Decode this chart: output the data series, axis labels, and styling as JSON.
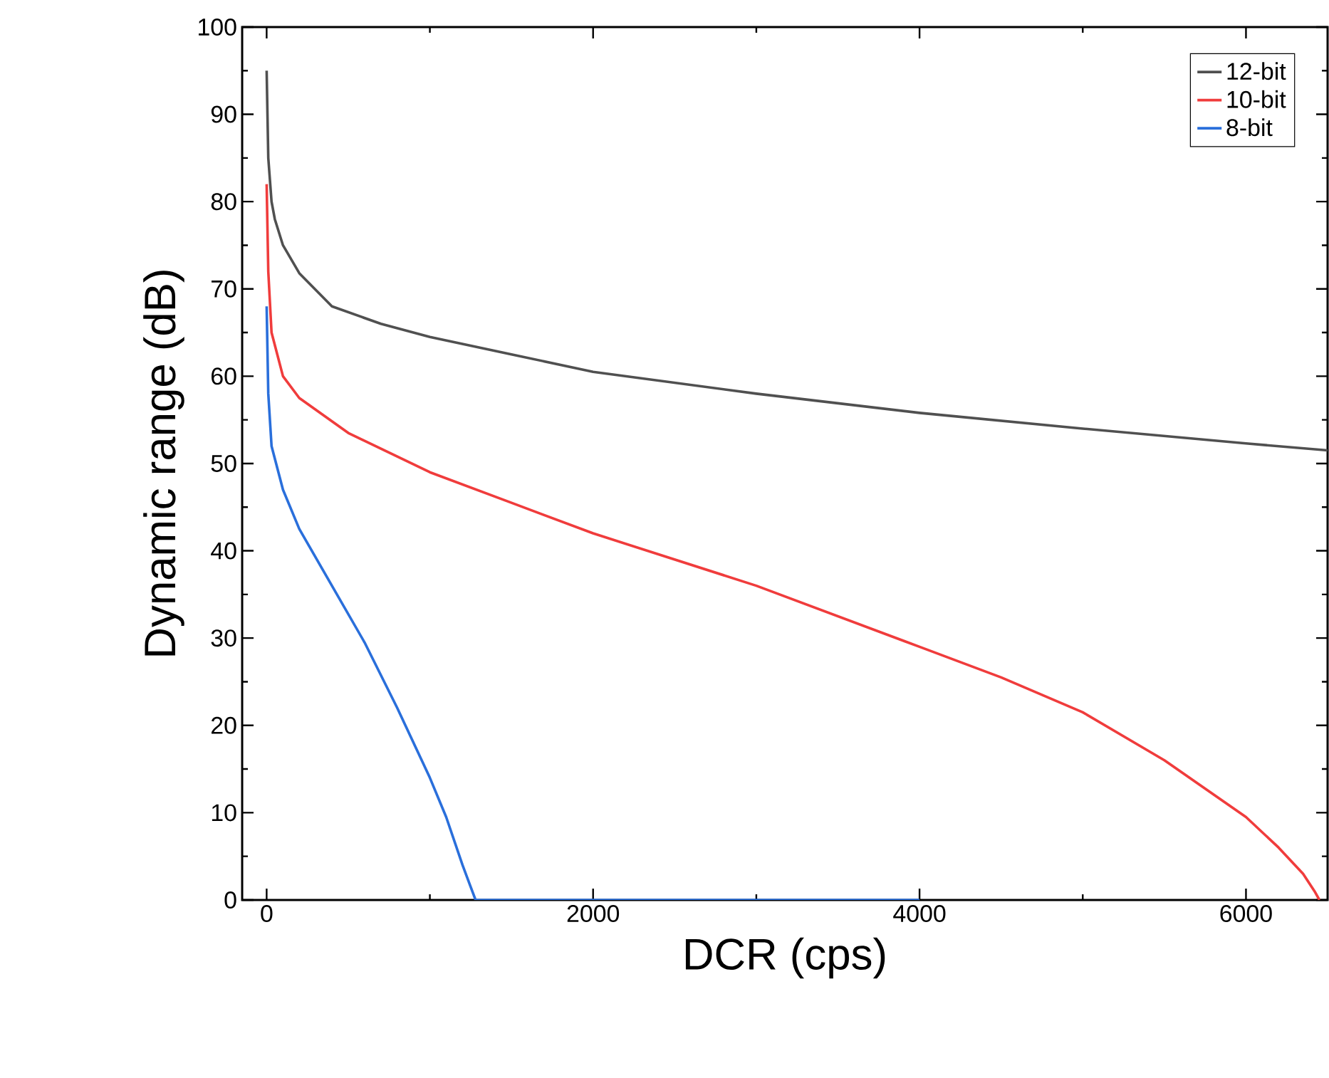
{
  "chart_data": {
    "type": "line",
    "xlabel": "DCR (cps)",
    "ylabel": "Dynamic range (dB)",
    "xlim": [
      -150,
      6500
    ],
    "ylim": [
      0,
      100
    ],
    "xticks": [
      0,
      2000,
      4000,
      6000
    ],
    "yticks": [
      0,
      10,
      20,
      30,
      40,
      50,
      60,
      70,
      80,
      90,
      100
    ],
    "legend": "top right",
    "series": [
      {
        "name": "12-bit",
        "color": "#505050",
        "x": [
          0,
          10,
          30,
          50,
          100,
          200,
          400,
          700,
          1000,
          1500,
          2000,
          3000,
          4000,
          5000,
          6000,
          6500
        ],
        "values": [
          95,
          85,
          80,
          78,
          75,
          71.8,
          68,
          66,
          64.5,
          62.5,
          60.5,
          58,
          55.8,
          54,
          52.3,
          51.5
        ]
      },
      {
        "name": "10-bit",
        "color": "#f03c3c",
        "x": [
          0,
          10,
          30,
          100,
          200,
          500,
          1000,
          1500,
          2000,
          3000,
          4000,
          4500,
          5000,
          5500,
          6000,
          6200,
          6350,
          6420,
          6450
        ],
        "values": [
          82,
          72,
          65,
          60,
          57.5,
          53.5,
          49,
          45.5,
          42,
          36,
          29,
          25.5,
          21.5,
          16,
          9.5,
          6,
          3,
          1,
          0
        ]
      },
      {
        "name": "8-bit",
        "color": "#2a6fdb",
        "x": [
          0,
          10,
          30,
          100,
          200,
          400,
          600,
          800,
          1000,
          1100,
          1200,
          1250,
          1280,
          2000,
          4000
        ],
        "values": [
          68,
          58,
          52,
          47,
          42.5,
          36,
          29.5,
          22,
          14,
          9.5,
          4,
          1.5,
          0,
          0,
          0
        ]
      }
    ]
  }
}
